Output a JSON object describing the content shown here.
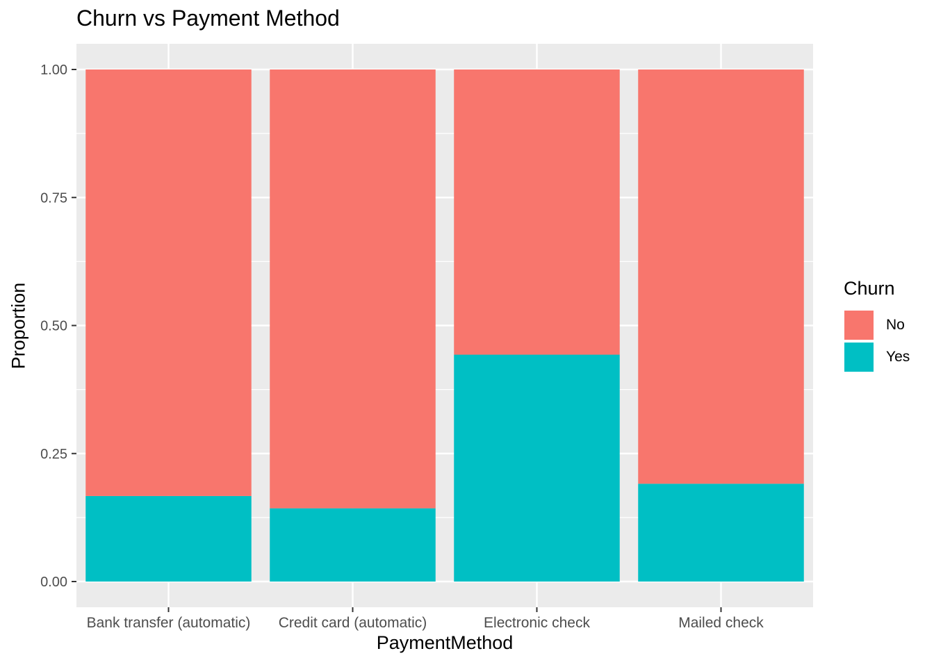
{
  "chart_data": {
    "type": "bar",
    "stacked": true,
    "title": "Churn vs Payment Method",
    "xlabel": "PaymentMethod",
    "ylabel": "Proportion",
    "categories": [
      "Bank transfer (automatic)",
      "Credit card (automatic)",
      "Electronic check",
      "Mailed check"
    ],
    "series": [
      {
        "name": "No",
        "color": "#F8766D",
        "values": [
          0.833,
          0.857,
          0.557,
          0.809
        ]
      },
      {
        "name": "Yes",
        "color": "#00BFC4",
        "values": [
          0.167,
          0.143,
          0.443,
          0.191
        ]
      }
    ],
    "ylim": [
      0,
      1
    ],
    "yticks": [
      0.0,
      0.25,
      0.5,
      0.75,
      1.0
    ],
    "ytick_labels": [
      "0.00",
      "0.25",
      "0.50",
      "0.75",
      "1.00"
    ],
    "grid": true,
    "legend": {
      "title": "Churn",
      "position": "right",
      "entries": [
        "No",
        "Yes"
      ]
    },
    "panel_background": "#EBEBEB"
  }
}
